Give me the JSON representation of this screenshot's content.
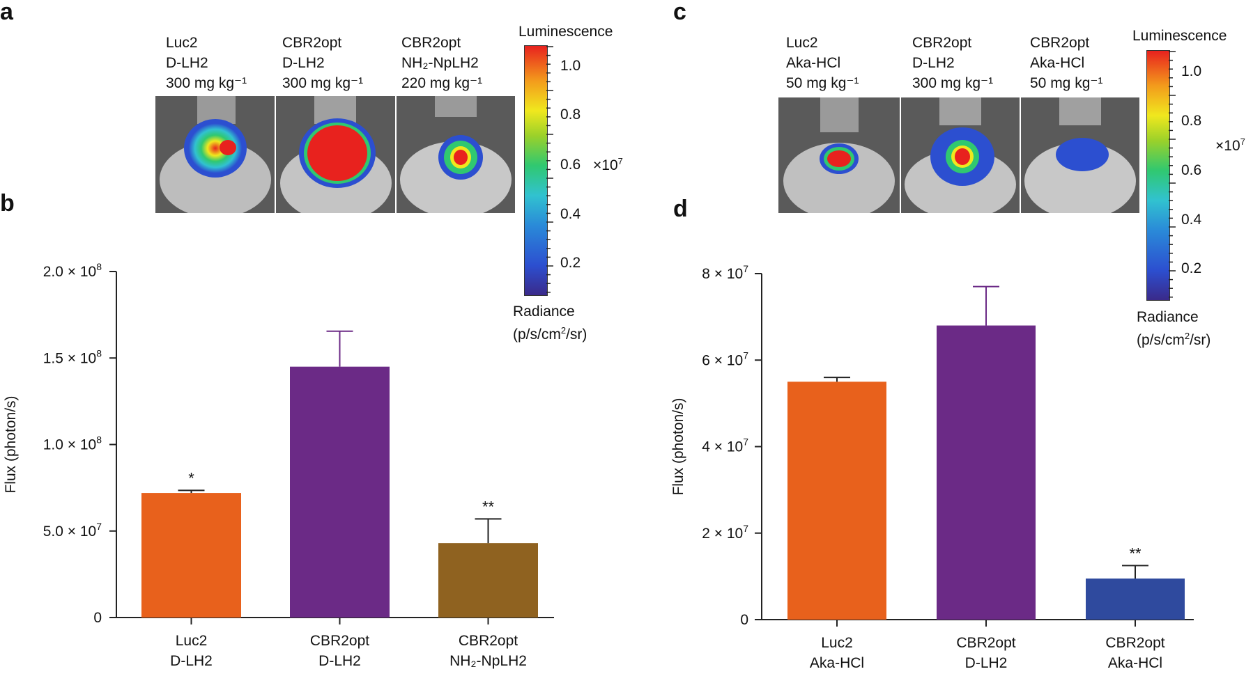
{
  "panels": {
    "a": {
      "letter": "a",
      "colorbar_title": "Luminescence",
      "colorbar_ticks": [
        "1.0",
        "0.8",
        "0.6",
        "0.4",
        "0.2"
      ],
      "colorbar_unit": "×10",
      "colorbar_unit_exp": "7",
      "colorbar_footer_1": "Radiance",
      "colorbar_footer_2a": "(p/s/cm",
      "colorbar_footer_2b": "2",
      "colorbar_footer_2c": "/sr)",
      "conditions": [
        {
          "l1": "Luc2",
          "l2": "D-LH2",
          "l3": "300 mg kg⁻¹"
        },
        {
          "l1": "CBR2opt",
          "l2": "D-LH2",
          "l3": "300 mg kg⁻¹"
        },
        {
          "l1": "CBR2opt",
          "l2": "NH₂-NpLH2",
          "l3": "220 mg kg⁻¹"
        }
      ]
    },
    "c": {
      "letter": "c",
      "colorbar_title": "Luminescence",
      "colorbar_ticks": [
        "1.0",
        "0.8",
        "0.6",
        "0.4",
        "0.2"
      ],
      "colorbar_unit": "×10",
      "colorbar_unit_exp": "7",
      "colorbar_footer_1": "Radiance",
      "colorbar_footer_2a": "(p/s/cm",
      "colorbar_footer_2b": "2",
      "colorbar_footer_2c": "/sr)",
      "conditions": [
        {
          "l1": "Luc2",
          "l2": "Aka-HCl",
          "l3": "50 mg kg⁻¹"
        },
        {
          "l1": "CBR2opt",
          "l2": "D-LH2",
          "l3": "300 mg kg⁻¹"
        },
        {
          "l1": "CBR2opt",
          "l2": "Aka-HCl",
          "l3": "50 mg kg⁻¹"
        }
      ]
    },
    "b": {
      "letter": "b"
    },
    "d": {
      "letter": "d"
    }
  },
  "chart_data": [
    {
      "id": "b",
      "type": "bar",
      "ylabel": "Flux (photon/s)",
      "ylim": [
        0,
        200000000
      ],
      "ytick_values": [
        0,
        50000000,
        100000000,
        150000000,
        200000000
      ],
      "ytick_labels": [
        {
          "m": "0",
          "e": ""
        },
        {
          "m": "5.0 × 10",
          "e": "7"
        },
        {
          "m": "1.0 × 10",
          "e": "8"
        },
        {
          "m": "1.5 × 10",
          "e": "8"
        },
        {
          "m": "2.0 × 10",
          "e": "8"
        }
      ],
      "categories": [
        {
          "l1": "Luc2",
          "l2": "D-LH2"
        },
        {
          "l1": "CBR2opt",
          "l2": "D-LH2"
        },
        {
          "l1": "CBR2opt",
          "l2": "NH₂-NpLH2"
        }
      ],
      "values": [
        72000000,
        145000000,
        43000000
      ],
      "errors": [
        1500000,
        20500000,
        14000000
      ],
      "colors": [
        "#e8611c",
        "#6b2a86",
        "#8f6220"
      ],
      "significance": [
        "*",
        "",
        "**"
      ]
    },
    {
      "id": "d",
      "type": "bar",
      "ylabel": "Flux (photon/s)",
      "ylim": [
        0,
        80000000
      ],
      "ytick_values": [
        0,
        20000000,
        40000000,
        60000000,
        80000000
      ],
      "ytick_labels": [
        {
          "m": "0",
          "e": ""
        },
        {
          "m": "2 × 10",
          "e": "7"
        },
        {
          "m": "4 × 10",
          "e": "7"
        },
        {
          "m": "6 × 10",
          "e": "7"
        },
        {
          "m": "8 × 10",
          "e": "7"
        }
      ],
      "categories": [
        {
          "l1": "Luc2",
          "l2": "Aka-HCl"
        },
        {
          "l1": "CBR2opt",
          "l2": "D-LH2"
        },
        {
          "l1": "CBR2opt",
          "l2": "Aka-HCl"
        }
      ],
      "values": [
        55000000,
        68000000,
        9500000
      ],
      "errors": [
        1000000,
        9000000,
        3000000
      ],
      "colors": [
        "#e8611c",
        "#6b2a86",
        "#2f4a9e"
      ],
      "significance": [
        "",
        "",
        "**"
      ]
    }
  ]
}
